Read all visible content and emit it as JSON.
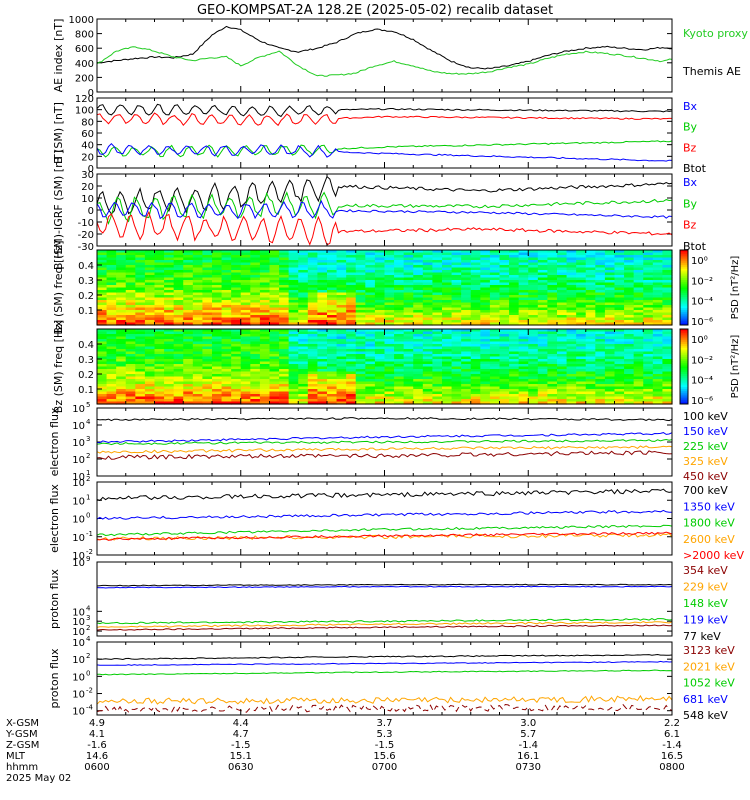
{
  "title": "GEO-KOMPSAT-2A 128.2E (2025-05-02) recalib dataset",
  "colors": {
    "black": "#000000",
    "blue": "#0000ff",
    "green": "#00cc00",
    "red": "#ff0000",
    "orange": "#ffa500",
    "darkred": "#8b0000",
    "gkgreen": "#22dd22"
  },
  "x_axis": {
    "rows": [
      {
        "label": "X-GSM",
        "values": [
          "4.9",
          "4.4",
          "3.7",
          "3.0",
          "2.2"
        ]
      },
      {
        "label": "Y-GSM",
        "values": [
          "4.1",
          "4.7",
          "5.3",
          "5.7",
          "6.1"
        ]
      },
      {
        "label": "Z-GSM",
        "values": [
          "-1.6",
          "-1.5",
          "-1.5",
          "-1.4",
          "-1.4"
        ]
      },
      {
        "label": "MLT",
        "values": [
          "14.6",
          "15.1",
          "15.6",
          "16.1",
          "16.5"
        ]
      },
      {
        "label": "hhmm",
        "values": [
          "0600",
          "0630",
          "0700",
          "0730",
          "0800"
        ]
      }
    ],
    "date": "2025 May 02"
  },
  "chart_data": [
    {
      "type": "line",
      "ylabel": "AE index [nT]",
      "ylim": [
        0,
        1000
      ],
      "yticks": [
        "0",
        "200",
        "400",
        "600",
        "800",
        "1000"
      ],
      "legend": [
        {
          "label": "Kyoto proxy AE",
          "color": "#22cc22"
        },
        {
          "label": "Themis AE",
          "color": "#000000"
        }
      ],
      "series": [
        {
          "name": "Themis AE",
          "color": "#000000",
          "x": [
            0,
            4,
            8,
            12,
            16,
            20,
            24,
            27,
            30,
            34,
            38,
            42,
            46,
            50,
            54,
            58,
            62,
            66,
            70,
            74,
            78,
            82,
            86,
            90,
            94,
            98,
            102,
            106,
            110,
            114,
            118,
            120
          ],
          "y": [
            400,
            430,
            460,
            480,
            470,
            520,
            780,
            900,
            850,
            700,
            600,
            550,
            600,
            680,
            800,
            860,
            830,
            720,
            560,
            420,
            330,
            320,
            360,
            420,
            500,
            560,
            600,
            620,
            600,
            580,
            610,
            600
          ]
        },
        {
          "name": "Kyoto proxy AE",
          "color": "#22cc22",
          "x": [
            0,
            4,
            8,
            12,
            16,
            20,
            24,
            27,
            30,
            34,
            38,
            42,
            46,
            50,
            54,
            58,
            62,
            66,
            70,
            74,
            78,
            82,
            86,
            90,
            94,
            98,
            102,
            106,
            110,
            114,
            118,
            120
          ],
          "y": [
            380,
            560,
            620,
            560,
            480,
            430,
            470,
            480,
            360,
            480,
            560,
            360,
            220,
            230,
            260,
            360,
            420,
            360,
            280,
            250,
            250,
            280,
            340,
            380,
            460,
            520,
            550,
            530,
            500,
            460,
            420,
            450
          ]
        }
      ]
    },
    {
      "type": "line",
      "ylabel": "B (SM) [nT]",
      "ylim": [
        0,
        120
      ],
      "yticks": [
        "0",
        "20",
        "40",
        "60",
        "80",
        "100",
        "120"
      ],
      "legend": [
        {
          "label": "Bx",
          "color": "#0000ff"
        },
        {
          "label": "By",
          "color": "#00cc00"
        },
        {
          "label": "Bz",
          "color": "#ff0000"
        },
        {
          "label": "Btot",
          "color": "#000000"
        }
      ],
      "series": [
        {
          "name": "Btot",
          "color": "#000000",
          "baseline": [
            [
              0,
              100
            ],
            [
              40,
              98
            ],
            [
              60,
              101
            ],
            [
              120,
              97
            ]
          ],
          "osc": 8,
          "osc_until": 50
        },
        {
          "name": "Bz",
          "color": "#ff0000",
          "baseline": [
            [
              0,
              85
            ],
            [
              40,
              82
            ],
            [
              60,
              88
            ],
            [
              120,
              84
            ]
          ],
          "osc": 8,
          "osc_until": 50
        },
        {
          "name": "By",
          "color": "#00cc00",
          "baseline": [
            [
              0,
              28
            ],
            [
              40,
              30
            ],
            [
              60,
              36
            ],
            [
              120,
              46
            ]
          ],
          "osc": 8,
          "osc_until": 50
        },
        {
          "name": "Bx",
          "color": "#0000ff",
          "baseline": [
            [
              0,
              32
            ],
            [
              40,
              30
            ],
            [
              60,
              25
            ],
            [
              120,
              12
            ]
          ],
          "osc": 8,
          "osc_until": 50
        }
      ]
    },
    {
      "type": "line",
      "ylabel": "B (SM)-IGRF (SM) [nT]",
      "ylim": [
        -30,
        30
      ],
      "yticks": [
        "-30",
        "-20",
        "-10",
        "0",
        "10",
        "20",
        "30"
      ],
      "legend": [
        {
          "label": "Bx",
          "color": "#0000ff"
        },
        {
          "label": "By",
          "color": "#00cc00"
        },
        {
          "label": "Bz",
          "color": "#ff0000"
        },
        {
          "label": "Btot",
          "color": "#000000"
        }
      ],
      "series": [
        {
          "name": "Btot",
          "color": "#000000",
          "baseline": [
            [
              0,
              5
            ],
            [
              30,
              12
            ],
            [
              50,
              20
            ],
            [
              80,
              16
            ],
            [
              120,
              22
            ]
          ],
          "osc": 9,
          "osc_until": 50
        },
        {
          "name": "By",
          "color": "#00cc00",
          "baseline": [
            [
              0,
              0
            ],
            [
              40,
              4
            ],
            [
              80,
              3
            ],
            [
              120,
              8
            ]
          ],
          "osc": 9,
          "osc_until": 50
        },
        {
          "name": "Bx",
          "color": "#0000ff",
          "baseline": [
            [
              0,
              0
            ],
            [
              40,
              0
            ],
            [
              80,
              -2
            ],
            [
              120,
              -6
            ]
          ],
          "osc": 6,
          "osc_until": 50
        },
        {
          "name": "Bz",
          "color": "#ff0000",
          "baseline": [
            [
              0,
              -12
            ],
            [
              30,
              -16
            ],
            [
              50,
              -18
            ],
            [
              80,
              -16
            ],
            [
              120,
              -20
            ]
          ],
          "osc": 9,
          "osc_until": 50
        }
      ]
    },
    {
      "type": "heatmap",
      "ylabel": "Bx (SM) freq [Hz]",
      "ylim": [
        0,
        0.5
      ],
      "yticks": [
        "0.1",
        "0.2",
        "0.3",
        "0.4"
      ],
      "colorbar_label": "PSD [nT²/Hz]",
      "colorbar_ticks": [
        "10⁰",
        "10⁻²",
        "10⁻⁴",
        "10⁻⁶"
      ]
    },
    {
      "type": "heatmap",
      "ylabel": "Bz (SM) freq [Hz]",
      "ylim": [
        0,
        0.5
      ],
      "yticks": [
        "0.1",
        "0.2",
        "0.3",
        "0.4"
      ],
      "colorbar_label": "PSD [nT²/Hz]",
      "colorbar_ticks": [
        "10⁰",
        "10⁻²",
        "10⁻⁴",
        "10⁻⁶"
      ]
    },
    {
      "type": "line",
      "scale": "log",
      "ylabel": "electron flux",
      "ylim_exp": [
        1,
        5
      ],
      "ytick_exps": [
        1,
        2,
        3,
        4,
        5
      ],
      "legend": [
        {
          "label": "100 keV",
          "color": "#000000"
        },
        {
          "label": "150 keV",
          "color": "#0000ff"
        },
        {
          "label": "225 keV",
          "color": "#00cc00"
        },
        {
          "label": "325 keV",
          "color": "#ffa500"
        },
        {
          "label": "450 keV",
          "color": "#8b0000"
        }
      ],
      "series": [
        {
          "name": "100 keV",
          "color": "#000000",
          "baseline": [
            [
              0,
              4.3
            ],
            [
              60,
              4.4
            ],
            [
              120,
              4.3
            ]
          ],
          "osc": 0.05
        },
        {
          "name": "150 keV",
          "color": "#0000ff",
          "baseline": [
            [
              0,
              3.0
            ],
            [
              60,
              3.3
            ],
            [
              120,
              3.5
            ]
          ],
          "osc": 0.06
        },
        {
          "name": "225 keV",
          "color": "#00cc00",
          "baseline": [
            [
              0,
              2.9
            ],
            [
              60,
              3.0
            ],
            [
              120,
              3.1
            ]
          ],
          "osc": 0.06
        },
        {
          "name": "325 keV",
          "color": "#ffa500",
          "baseline": [
            [
              0,
              2.4
            ],
            [
              60,
              2.6
            ],
            [
              120,
              2.7
            ]
          ],
          "osc": 0.08
        },
        {
          "name": "450 keV",
          "color": "#8b0000",
          "baseline": [
            [
              0,
              2.1
            ],
            [
              60,
              2.2
            ],
            [
              120,
              2.4
            ]
          ],
          "osc": 0.12
        }
      ]
    },
    {
      "type": "line",
      "scale": "log",
      "ylabel": "electron flux",
      "ylim_exp": [
        -2,
        2
      ],
      "ytick_exps": [
        -2,
        -1,
        0,
        1,
        2
      ],
      "legend": [
        {
          "label": "700 keV",
          "color": "#000000"
        },
        {
          "label": "1350 keV",
          "color": "#0000ff"
        },
        {
          "label": "1800 keV",
          "color": "#00cc00"
        },
        {
          "label": "2600 keV",
          "color": "#ffa500"
        },
        {
          "label": ">2000 keV",
          "color": "#ff0000"
        }
      ],
      "series": [
        {
          "name": "700 keV",
          "color": "#000000",
          "baseline": [
            [
              0,
              1.1
            ],
            [
              60,
              1.3
            ],
            [
              120,
              1.5
            ]
          ],
          "osc": 0.12
        },
        {
          "name": "1350 keV",
          "color": "#0000ff",
          "baseline": [
            [
              0,
              0.0
            ],
            [
              60,
              0.2
            ],
            [
              120,
              0.4
            ]
          ],
          "osc": 0.07
        },
        {
          "name": "1800 keV",
          "color": "#00cc00",
          "baseline": [
            [
              0,
              -0.9
            ],
            [
              60,
              -0.6
            ],
            [
              120,
              -0.4
            ]
          ],
          "osc": 0.06
        },
        {
          "name": "2600 keV",
          "color": "#ffa500",
          "baseline": [
            [
              0,
              -1.1
            ],
            [
              60,
              -1.0
            ],
            [
              120,
              -0.9
            ]
          ],
          "osc": 0.1
        },
        {
          "name": ">2000 keV",
          "color": "#ff0000",
          "baseline": [
            [
              0,
              -1.15
            ],
            [
              60,
              -0.95
            ],
            [
              120,
              -0.8
            ]
          ],
          "osc": 0.06
        }
      ]
    },
    {
      "type": "line",
      "scale": "log",
      "ylabel": "proton flux",
      "ylim_exp": [
        1.5,
        9
      ],
      "ytick_exps": [
        2,
        3,
        4,
        9
      ],
      "legend": [
        {
          "label": "354 keV",
          "color": "#8b0000"
        },
        {
          "label": "229 keV",
          "color": "#ffa500"
        },
        {
          "label": "148 keV",
          "color": "#00cc00"
        },
        {
          "label": "119 keV",
          "color": "#0000ff"
        },
        {
          "label": "77 keV",
          "color": "#000000"
        }
      ],
      "series": [
        {
          "name": "77 keV",
          "color": "#000000",
          "baseline": [
            [
              0,
              6.6
            ],
            [
              60,
              6.7
            ],
            [
              120,
              6.7
            ]
          ],
          "osc": 0.04
        },
        {
          "name": "119 keV",
          "color": "#0000ff",
          "baseline": [
            [
              0,
              6.4
            ],
            [
              60,
              6.5
            ],
            [
              120,
              6.5
            ]
          ],
          "osc": 0.04
        },
        {
          "name": "148 keV",
          "color": "#00cc00",
          "baseline": [
            [
              0,
              2.8
            ],
            [
              60,
              3.0
            ],
            [
              120,
              3.2
            ]
          ],
          "osc": 0.08
        },
        {
          "name": "229 keV",
          "color": "#ffa500",
          "baseline": [
            [
              0,
              2.4
            ],
            [
              60,
              2.7
            ],
            [
              120,
              2.9
            ]
          ],
          "osc": 0.08
        },
        {
          "name": "354 keV",
          "color": "#8b0000",
          "baseline": [
            [
              0,
              2.1
            ],
            [
              60,
              2.4
            ],
            [
              120,
              2.6
            ]
          ],
          "osc": 0.06
        }
      ]
    },
    {
      "type": "line",
      "scale": "log",
      "ylabel": "proton flux",
      "ylim_exp": [
        -4.5,
        4
      ],
      "ytick_exps": [
        -4,
        -2,
        0,
        2,
        4
      ],
      "legend": [
        {
          "label": "3123 keV",
          "color": "#8b0000"
        },
        {
          "label": "2021 keV",
          "color": "#ffa500"
        },
        {
          "label": "1052 keV",
          "color": "#00cc00"
        },
        {
          "label": "681 keV",
          "color": "#0000ff"
        },
        {
          "label": "548 keV",
          "color": "#000000"
        }
      ],
      "series": [
        {
          "name": "548 keV",
          "color": "#000000",
          "baseline": [
            [
              0,
              2.0
            ],
            [
              60,
              2.3
            ],
            [
              120,
              2.5
            ]
          ],
          "osc": 0.06
        },
        {
          "name": "681 keV",
          "color": "#0000ff",
          "baseline": [
            [
              0,
              1.3
            ],
            [
              60,
              1.5
            ],
            [
              120,
              1.7
            ]
          ],
          "osc": 0.05
        },
        {
          "name": "1052 keV",
          "color": "#00cc00",
          "baseline": [
            [
              0,
              0.2
            ],
            [
              60,
              0.5
            ],
            [
              120,
              0.7
            ]
          ],
          "osc": 0.05
        },
        {
          "name": "2021 keV",
          "color": "#ffa500",
          "baseline": [
            [
              0,
              -2.9
            ],
            [
              60,
              -2.8
            ],
            [
              120,
              -2.6
            ]
          ],
          "osc": 0.35
        },
        {
          "name": "3123 keV",
          "color": "#8b0000",
          "baseline": [
            [
              0,
              -3.9
            ],
            [
              60,
              -3.7
            ],
            [
              120,
              -3.6
            ]
          ],
          "osc": 0.4,
          "dashed": true
        }
      ]
    }
  ]
}
